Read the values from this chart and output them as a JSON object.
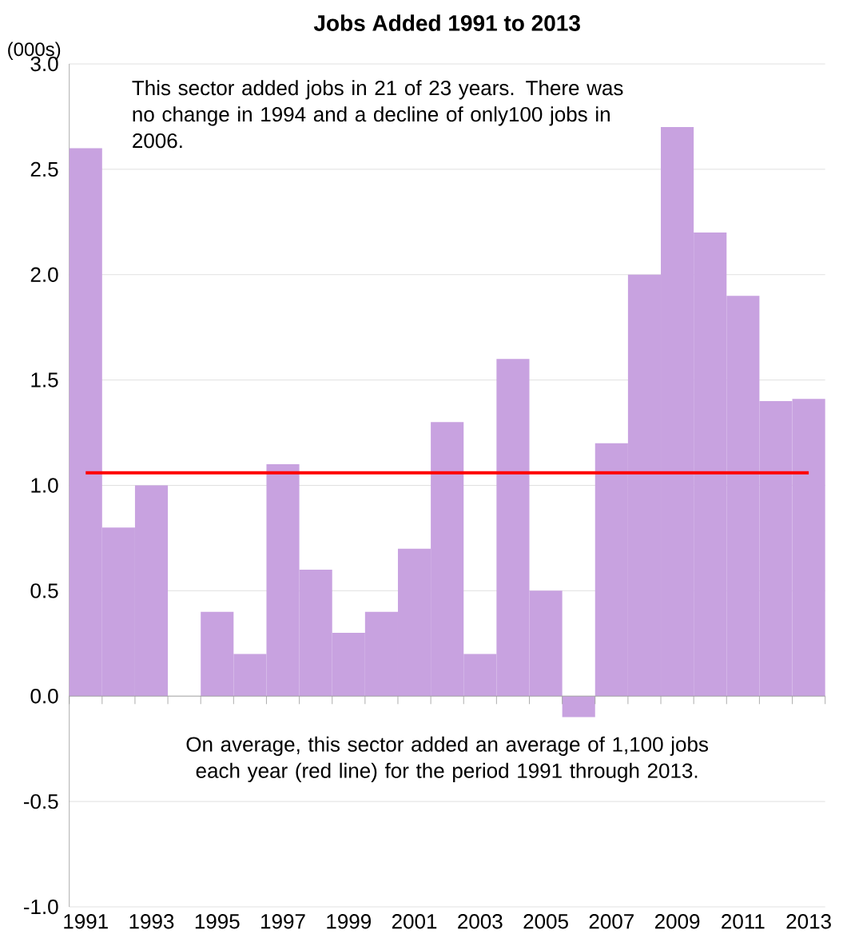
{
  "chart_data": {
    "type": "bar",
    "title": "Jobs Added 1991 to 2013",
    "ylabel": "(000s)",
    "categories": [
      "1991",
      null,
      "1993",
      null,
      "1995",
      null,
      "1997",
      null,
      "1999",
      null,
      "2001",
      null,
      "2003",
      null,
      "2005",
      null,
      "2007",
      null,
      "2009",
      null,
      "2011",
      null,
      "2013"
    ],
    "values": [
      2.6,
      0.8,
      1.0,
      0.0,
      0.4,
      0.2,
      1.1,
      0.6,
      0.3,
      0.4,
      0.7,
      1.3,
      0.2,
      1.6,
      0.5,
      -0.1,
      1.2,
      2.0,
      2.7,
      2.2,
      1.9,
      1.4,
      1.41
    ],
    "color": "#c8a2e0",
    "ylim": [
      -1.0,
      3.0
    ],
    "yticks": [
      {
        "value": -1.0,
        "label": "-1.0"
      },
      -0.5,
      {
        "value": 0.0,
        "label": "0.0"
      },
      0.5,
      {
        "value": 1.0,
        "label": "1.0"
      },
      1.5,
      {
        "value": 2.0,
        "label": "2.0"
      },
      2.5,
      {
        "value": 3.0,
        "label": "3.0"
      }
    ],
    "grid": "y",
    "ref_lines": [
      {
        "axis": "y",
        "value": 1.06,
        "color": "#ff0000"
      }
    ],
    "annotations": [
      "This sector added jobs in 21 of 23 years. There was no change in 1994 and a decline of only100 jobs in 2006.",
      "On average, this sector added an average of 1,100 jobs each year (red line) for the period 1991 through 2013."
    ]
  }
}
